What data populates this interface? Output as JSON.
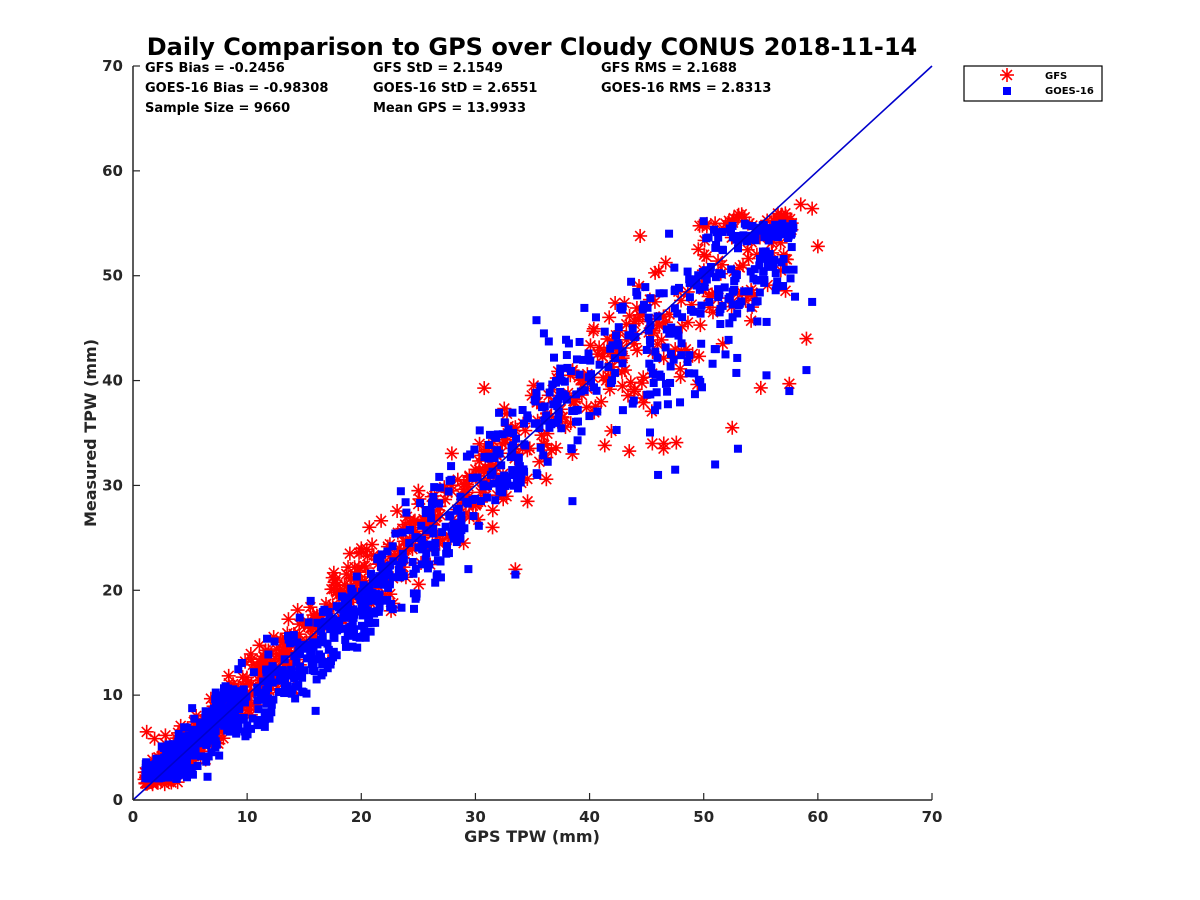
{
  "chart_data": {
    "type": "scatter",
    "title": "Daily Comparison to GPS over Cloudy CONUS 2018-11-14",
    "xlabel": "GPS TPW (mm)",
    "ylabel": "Measured TPW (mm)",
    "xlim": [
      0,
      70
    ],
    "ylim": [
      0,
      70
    ],
    "xticks": [
      "0",
      "10",
      "20",
      "30",
      "40",
      "50",
      "60",
      "70"
    ],
    "yticks": [
      "0",
      "10",
      "20",
      "30",
      "40",
      "50",
      "60",
      "70"
    ],
    "grid": false,
    "legend_position": "outside-top-right",
    "stats": {
      "gfs_bias": "GFS Bias = -0.2456",
      "gfs_std": "GFS StD = 2.1549",
      "gfs_rms": "GFS RMS = 2.1688",
      "goes_bias": "GOES-16 Bias = -0.98308",
      "goes_std": "GOES-16 StD = 2.6551",
      "goes_rms": "GOES-16 RMS = 2.8313",
      "sample_size": "Sample Size = 9660",
      "mean_gps": "Mean GPS = 13.9933"
    },
    "reference_line": {
      "name": "1:1 line",
      "x": [
        0,
        70
      ],
      "y": [
        0,
        70
      ],
      "color": "#0000cc"
    },
    "series": [
      {
        "name": "GFS",
        "marker": "asterisk",
        "color": "#ff0000",
        "clusters": [
          {
            "x": [
              1,
              8
            ],
            "y": [
              1.5,
              10
            ],
            "slope": 1.0,
            "offset": 0.2,
            "spread": 1.2,
            "n": 220
          },
          {
            "x": [
              8,
              20
            ],
            "y": [
              8,
              24
            ],
            "slope": 1.0,
            "offset": 0.5,
            "spread": 1.6,
            "n": 200
          },
          {
            "x": [
              20,
              32
            ],
            "y": [
              18,
              37
            ],
            "slope": 1.0,
            "offset": 0.3,
            "spread": 2.0,
            "n": 140
          },
          {
            "x": [
              30,
              40
            ],
            "y": [
              28,
              41
            ],
            "slope": 1.0,
            "offset": 0.0,
            "spread": 2.5,
            "n": 90
          },
          {
            "x": [
              40,
              58
            ],
            "y": [
              33,
              56
            ],
            "slope": 1.0,
            "offset": -1.5,
            "spread": 4.0,
            "n": 180
          }
        ],
        "points": [
          [
            33.5,
            22.0
          ],
          [
            58.5,
            56.8
          ],
          [
            59.5,
            56.4
          ],
          [
            60.0,
            52.8
          ],
          [
            59.0,
            44.0
          ],
          [
            57.5,
            39.7
          ],
          [
            55.0,
            39.3
          ],
          [
            14.0,
            10.5
          ],
          [
            25.0,
            29.5
          ],
          [
            24.0,
            27.0
          ],
          [
            19.0,
            23.5
          ],
          [
            20.0,
            24.0
          ],
          [
            31.5,
            26.0
          ],
          [
            45.5,
            34.0
          ],
          [
            46.5,
            34.0
          ],
          [
            53.0,
            55.5
          ],
          [
            54.0,
            55.0
          ],
          [
            51.0,
            55.0
          ],
          [
            57.0,
            52.0
          ],
          [
            50.0,
            49.5
          ],
          [
            1.2,
            6.5
          ],
          [
            3.5,
            2.0
          ],
          [
            38.5,
            33.0
          ],
          [
            47.5,
            43.0
          ],
          [
            52.5,
            35.5
          ]
        ]
      },
      {
        "name": "GOES-16",
        "marker": "square",
        "color": "#0000ff",
        "clusters": [
          {
            "x": [
              1,
              9
            ],
            "y": [
              2,
              11
            ],
            "slope": 1.0,
            "offset": 0.0,
            "spread": 1.3,
            "n": 320
          },
          {
            "x": [
              9,
              22
            ],
            "y": [
              6,
              25
            ],
            "slope": 1.0,
            "offset": -1.5,
            "spread": 2.0,
            "n": 280
          },
          {
            "x": [
              22,
              34
            ],
            "y": [
              18,
              38
            ],
            "slope": 1.0,
            "offset": -1.0,
            "spread": 2.4,
            "n": 180
          },
          {
            "x": [
              34,
              45
            ],
            "y": [
              30,
              50
            ],
            "slope": 1.0,
            "offset": 0.5,
            "spread": 3.0,
            "n": 120
          },
          {
            "x": [
              45,
              58
            ],
            "y": [
              32,
              55
            ],
            "slope": 1.0,
            "offset": -2.5,
            "spread": 4.0,
            "n": 220
          }
        ],
        "points": [
          [
            33.5,
            21.5
          ],
          [
            59.5,
            47.5
          ],
          [
            58.0,
            48.0
          ],
          [
            57.5,
            39.0
          ],
          [
            50.0,
            55.2
          ],
          [
            46.0,
            31.0
          ],
          [
            47.5,
            31.5
          ],
          [
            51.0,
            32.0
          ],
          [
            53.0,
            33.5
          ],
          [
            16.0,
            8.5
          ],
          [
            14.5,
            14.0
          ],
          [
            38.5,
            28.5
          ],
          [
            36.0,
            44.5
          ],
          [
            59.0,
            41.0
          ],
          [
            55.5,
            40.5
          ]
        ]
      }
    ]
  }
}
